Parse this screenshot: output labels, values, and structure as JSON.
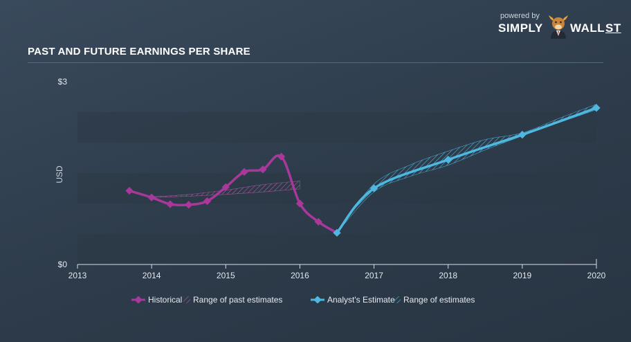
{
  "header": {
    "title": "PAST AND FUTURE EARNINGS PER SHARE"
  },
  "brand": {
    "powered_by": "powered by",
    "name_left": "SIMPLY",
    "name_mid": "WALL",
    "name_right": "ST"
  },
  "colors": {
    "historical": "#a8389a",
    "estimate": "#4fb8e0",
    "range_past": "#b35aa7",
    "range_future": "#4fb8e0"
  },
  "chart_data": {
    "type": "line",
    "title": "PAST AND FUTURE EARNINGS PER SHARE",
    "ylabel": "USD",
    "xlabel": "",
    "xlim": [
      2013,
      2020
    ],
    "ylim": [
      0,
      3
    ],
    "y_ticks": [
      {
        "value": 3,
        "label": "$3"
      },
      {
        "value": 0,
        "label": "$0"
      }
    ],
    "x_ticks": [
      {
        "value": 2013,
        "label": "2013"
      },
      {
        "value": 2014,
        "label": "2014"
      },
      {
        "value": 2015,
        "label": "2015"
      },
      {
        "value": 2016,
        "label": "2016"
      },
      {
        "value": 2017,
        "label": "2017"
      },
      {
        "value": 2018,
        "label": "2018"
      },
      {
        "value": 2019,
        "label": "2019"
      },
      {
        "value": 2020,
        "label": "2020"
      }
    ],
    "series": [
      {
        "name": "Historical",
        "points": [
          {
            "x": 2013.7,
            "y": 1.21
          },
          {
            "x": 2014.0,
            "y": 1.1
          },
          {
            "x": 2014.25,
            "y": 0.99
          },
          {
            "x": 2014.5,
            "y": 0.98
          },
          {
            "x": 2014.75,
            "y": 1.04
          },
          {
            "x": 2015.0,
            "y": 1.27
          },
          {
            "x": 2015.25,
            "y": 1.52
          },
          {
            "x": 2015.5,
            "y": 1.56
          },
          {
            "x": 2015.75,
            "y": 1.77
          },
          {
            "x": 2016.0,
            "y": 1.0
          },
          {
            "x": 2016.25,
            "y": 0.7
          },
          {
            "x": 2016.5,
            "y": 0.52
          }
        ]
      },
      {
        "name": "Analyst's Estimate",
        "points": [
          {
            "x": 2016.5,
            "y": 0.52
          },
          {
            "x": 2017.0,
            "y": 1.25
          },
          {
            "x": 2018.0,
            "y": 1.72
          },
          {
            "x": 2019.0,
            "y": 2.13
          },
          {
            "x": 2020.0,
            "y": 2.57
          }
        ]
      }
    ],
    "ranges": [
      {
        "name": "Range of past estimates",
        "x": [
          2014.0,
          2014.5,
          2015.0,
          2015.5,
          2016.0
        ],
        "low": [
          1.1,
          1.12,
          1.15,
          1.19,
          1.24
        ],
        "high": [
          1.11,
          1.15,
          1.22,
          1.31,
          1.37
        ]
      },
      {
        "name": "Range of estimates",
        "x": [
          2016.5,
          2017.0,
          2017.5,
          2018.0,
          2018.5,
          2019.0,
          2019.5,
          2020.0
        ],
        "low": [
          0.52,
          1.19,
          1.45,
          1.63,
          1.88,
          2.11,
          2.33,
          2.54
        ],
        "high": [
          0.52,
          1.32,
          1.64,
          1.86,
          2.05,
          2.16,
          2.4,
          2.63
        ]
      }
    ],
    "legend": {
      "placement": "bottom",
      "items": [
        {
          "label": "Historical"
        },
        {
          "label": "Range of past estimates"
        },
        {
          "label": "Analyst's Estimate"
        },
        {
          "label": "Range of estimates"
        }
      ]
    }
  }
}
